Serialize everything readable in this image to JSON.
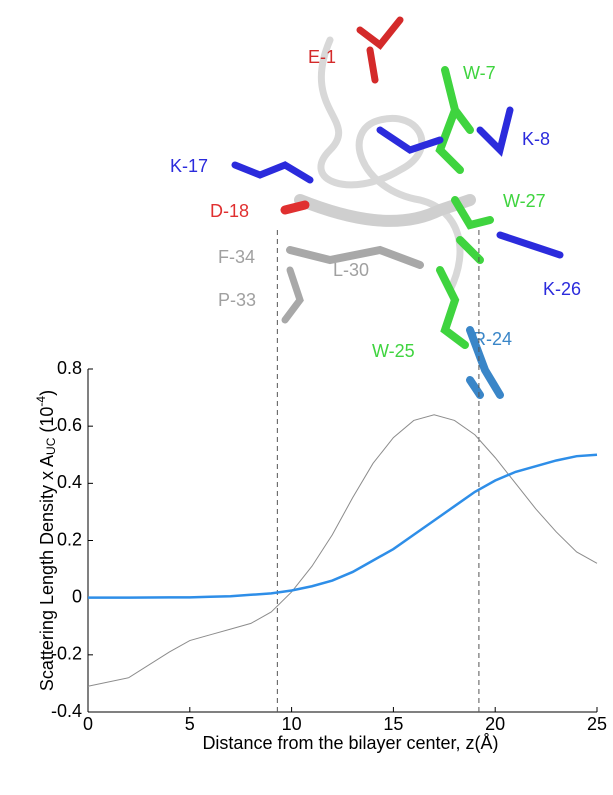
{
  "chart_data": {
    "type": "line",
    "ylabel_parts": [
      "Scattering Length Density x A",
      "UC",
      " (10",
      "-4",
      ")"
    ],
    "xlabel": "Distance from the bilayer center, z(Å)",
    "xlim": [
      0,
      25
    ],
    "xticks": [
      0,
      5,
      10,
      15,
      20,
      25
    ],
    "ylim": [
      -0.4,
      0.8
    ],
    "yticks": [
      -0.4,
      -0.2,
      0,
      0.2,
      0.4,
      0.6,
      0.8
    ],
    "x": [
      0,
      2,
      4,
      5,
      6,
      7,
      8,
      9,
      10,
      11,
      12,
      13,
      14,
      15,
      16,
      17,
      18,
      19,
      20,
      21,
      22,
      23,
      24,
      25
    ],
    "series": [
      {
        "color": "#8c8c8c",
        "values": [
          -0.31,
          -0.28,
          -0.19,
          -0.15,
          -0.13,
          -0.11,
          -0.09,
          -0.05,
          0.02,
          0.11,
          0.22,
          0.35,
          0.47,
          0.56,
          0.62,
          0.64,
          0.62,
          0.57,
          0.49,
          0.4,
          0.31,
          0.23,
          0.16,
          0.12
        ]
      },
      {
        "color": "#2e8ee8",
        "values": [
          0,
          0,
          0.001,
          0.001,
          0.003,
          0.005,
          0.01,
          0.015,
          0.025,
          0.04,
          0.06,
          0.09,
          0.13,
          0.17,
          0.22,
          0.27,
          0.32,
          0.37,
          0.41,
          0.44,
          0.46,
          0.48,
          0.495,
          0.5
        ]
      }
    ],
    "vlines": [
      9.3,
      19.2
    ],
    "annotations": [
      {
        "text": "E-1",
        "color": "#d42a2a"
      },
      {
        "text": "W-7",
        "color": "#3fd43f"
      },
      {
        "text": "K-8",
        "color": "#2b2bdc"
      },
      {
        "text": "K-17",
        "color": "#2b2bdc"
      },
      {
        "text": "D-18",
        "color": "#e03030"
      },
      {
        "text": "W-27",
        "color": "#3fd43f"
      },
      {
        "text": "F-34",
        "color": "#a0a0a0"
      },
      {
        "text": "K-26",
        "color": "#2b2bdc"
      },
      {
        "text": "L-30",
        "color": "#a0a0a0"
      },
      {
        "text": "P-33",
        "color": "#a0a0a0"
      },
      {
        "text": "W-25",
        "color": "#3fd43f"
      },
      {
        "text": "R-24",
        "color": "#3a86c8"
      }
    ]
  }
}
